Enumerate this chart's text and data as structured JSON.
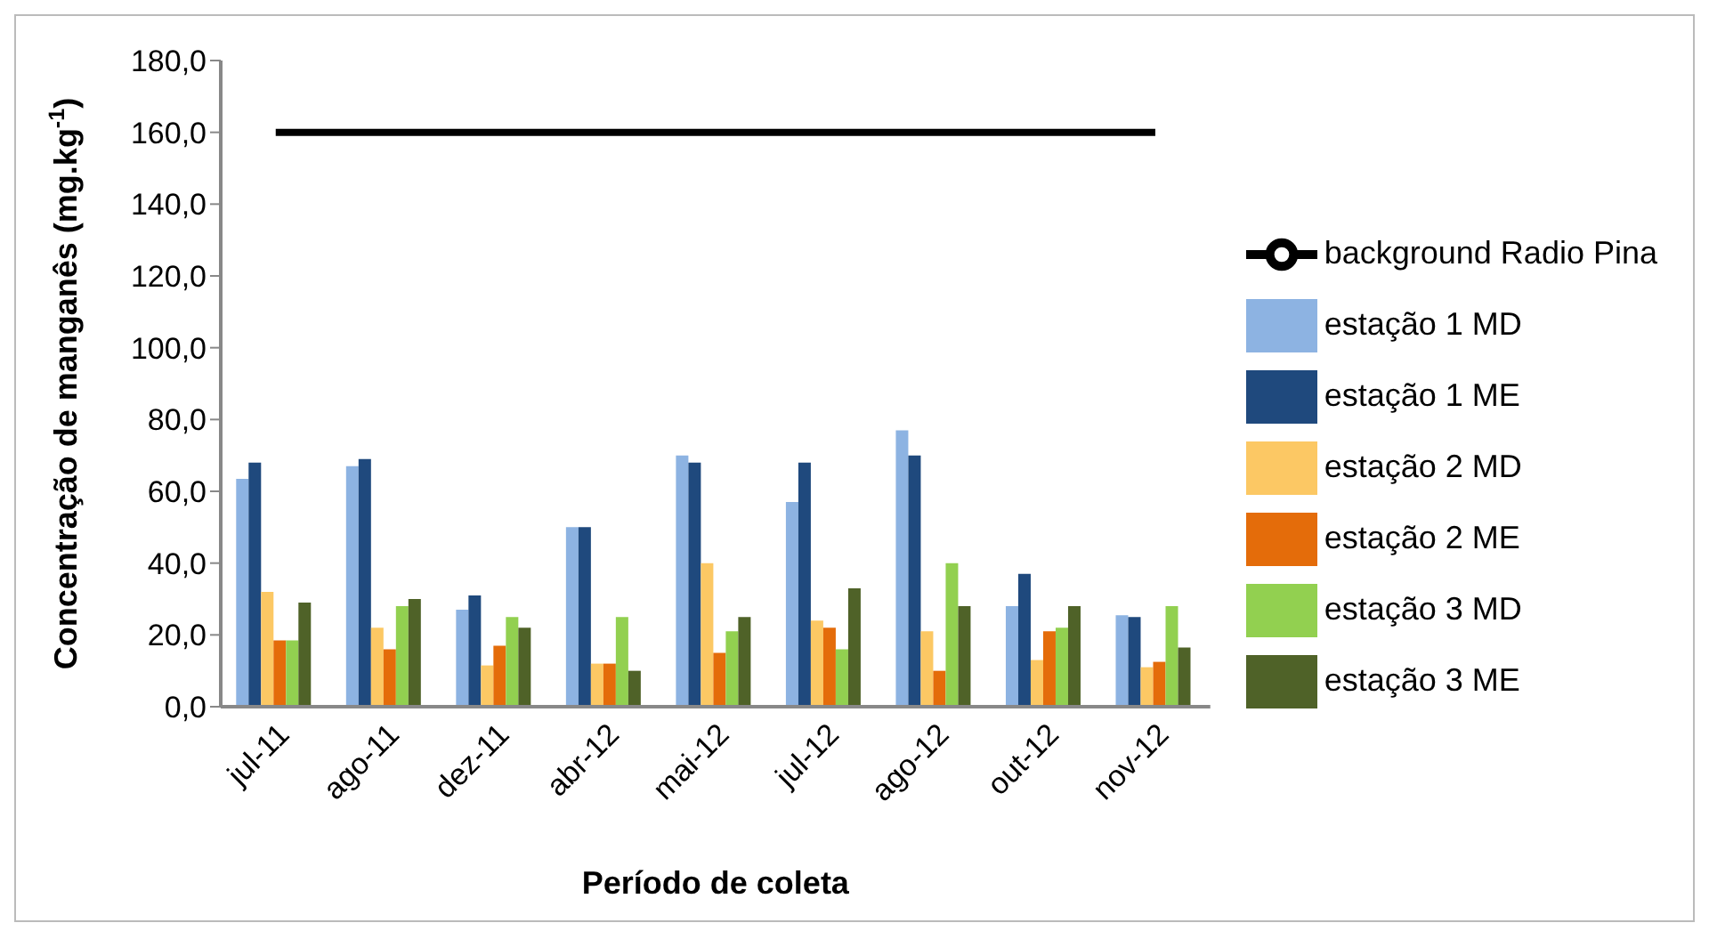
{
  "chart_data": {
    "type": "bar",
    "xlabel": "Período de coleta",
    "ylabel": "Concentração de manganês (mg.kg$^{-1}$)",
    "categories": [
      "jul-11",
      "ago-11",
      "dez-11",
      "abr-12",
      "mai-12",
      "jul-12",
      "ago-12",
      "out-12",
      "nov-12"
    ],
    "series": [
      {
        "name": "estação 1 MD",
        "color": "#8db3e2",
        "values": [
          63.5,
          67,
          27,
          50,
          70,
          57,
          77,
          28,
          25.5
        ]
      },
      {
        "name": "estação 1 ME",
        "color": "#1f497d",
        "values": [
          68,
          69,
          31,
          50,
          68,
          68,
          70,
          37,
          25
        ]
      },
      {
        "name": "estação 2 MD",
        "color": "#fcc864",
        "values": [
          32,
          22,
          11.5,
          12,
          40,
          24,
          21,
          13,
          11
        ]
      },
      {
        "name": "estação 2 ME",
        "color": "#e46c0a",
        "values": [
          18.5,
          16,
          17,
          12,
          15,
          22,
          10,
          21,
          12.5
        ]
      },
      {
        "name": "estação 3 MD",
        "color": "#92d050",
        "values": [
          18.5,
          28,
          25,
          25,
          21,
          16,
          40,
          22,
          28
        ]
      },
      {
        "name": "estação 3 ME",
        "color": "#4f6228",
        "values": [
          29,
          30,
          22,
          10,
          25,
          33,
          28,
          28,
          16.5
        ]
      },
      {
        "name": "background Radio Pina",
        "type": "line",
        "color": "#000000",
        "values": [
          160,
          160,
          160,
          160,
          160,
          160,
          160,
          160,
          160
        ]
      }
    ],
    "ylim": [
      0,
      180
    ],
    "yticks": [
      {
        "value": 0,
        "label": "0,0"
      },
      {
        "value": 20,
        "label": "20,0"
      },
      {
        "value": 40,
        "label": "40,0"
      },
      {
        "value": 60,
        "label": "60,0"
      },
      {
        "value": 80,
        "label": "80,0"
      },
      {
        "value": 100,
        "label": "100,0"
      },
      {
        "value": 120,
        "label": "120,0"
      },
      {
        "value": 140,
        "label": "140,0"
      },
      {
        "value": 160,
        "label": "160,0"
      },
      {
        "value": 180,
        "label": "180,0"
      }
    ],
    "grid": false,
    "legend": "right",
    "marker": "none"
  }
}
